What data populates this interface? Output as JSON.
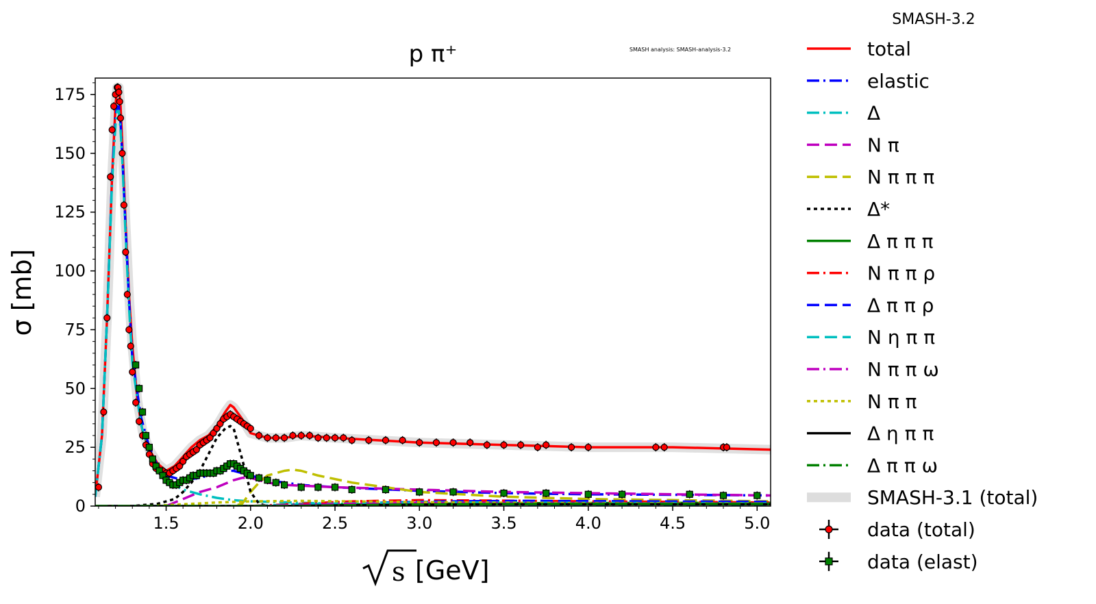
{
  "chart_data": {
    "type": "line",
    "title": "p π⁺",
    "watermark": "SMASH analysis: SMASH-analysis-3.2",
    "version_label": "SMASH-3.2",
    "xlabel_radicand": "s",
    "xlabel_unit": "[GeV]",
    "ylabel": "σ [mb]",
    "xlim": [
      1.08,
      5.08
    ],
    "ylim": [
      0,
      182
    ],
    "xticks": [
      1.5,
      2.0,
      2.5,
      3.0,
      3.5,
      4.0,
      4.5,
      5.0
    ],
    "xtick_labels": [
      "1.5",
      "2.0",
      "2.5",
      "3.0",
      "3.5",
      "4.0",
      "4.5",
      "5.0"
    ],
    "yticks": [
      0,
      25,
      50,
      75,
      100,
      125,
      150,
      175
    ],
    "ytick_labels": [
      "0",
      "25",
      "50",
      "75",
      "100",
      "125",
      "150",
      "175"
    ],
    "legend_position": "outside-right",
    "series": [
      {
        "name": "total",
        "color": "#ff0000",
        "style": "solid",
        "x": [
          1.08,
          1.12,
          1.15,
          1.18,
          1.2,
          1.21,
          1.22,
          1.23,
          1.24,
          1.26,
          1.28,
          1.3,
          1.33,
          1.36,
          1.4,
          1.45,
          1.5,
          1.55,
          1.6,
          1.65,
          1.7,
          1.75,
          1.8,
          1.85,
          1.88,
          1.9,
          1.95,
          2.0,
          2.1,
          2.2,
          2.3,
          2.5,
          3.0,
          3.5,
          4.0,
          4.5,
          5.08
        ],
        "y": [
          4,
          30,
          80,
          140,
          170,
          178,
          178,
          170,
          155,
          120,
          90,
          68,
          45,
          32,
          24,
          18,
          15,
          17,
          21,
          25,
          28,
          30,
          34,
          40,
          43,
          42,
          37,
          31,
          29,
          29,
          30,
          29,
          27,
          26,
          25,
          25,
          24
        ]
      },
      {
        "name": "elastic",
        "color": "#0000ff",
        "style": "dashdot",
        "x": [
          1.08,
          1.12,
          1.15,
          1.18,
          1.2,
          1.21,
          1.22,
          1.23,
          1.24,
          1.26,
          1.28,
          1.3,
          1.35,
          1.4,
          1.45,
          1.5,
          1.6,
          1.7,
          1.8,
          1.85,
          1.9,
          1.95,
          2.0,
          2.1,
          2.2,
          2.3,
          2.5,
          3.0,
          3.5,
          4.0,
          4.5,
          5.08
        ],
        "y": [
          4,
          30,
          80,
          140,
          165,
          170,
          170,
          163,
          150,
          118,
          88,
          63,
          38,
          25,
          17,
          13,
          11,
          12,
          14,
          15,
          15,
          14,
          13,
          11,
          10,
          9,
          8,
          6.5,
          5.5,
          5,
          4.8,
          4.5
        ]
      },
      {
        "name": "Δ",
        "color": "#00bfbf",
        "style": "dashdot",
        "x": [
          1.08,
          1.12,
          1.15,
          1.18,
          1.2,
          1.21,
          1.22,
          1.23,
          1.24,
          1.26,
          1.28,
          1.3,
          1.35,
          1.4,
          1.5,
          1.6,
          1.7,
          1.8,
          1.9,
          2.0,
          2.5,
          3.0,
          4.0,
          5.08
        ],
        "y": [
          4,
          30,
          80,
          138,
          162,
          168,
          168,
          160,
          148,
          115,
          85,
          61,
          35,
          22,
          11,
          7,
          5,
          3.5,
          2.5,
          2,
          1,
          0.6,
          0.3,
          0.2
        ]
      },
      {
        "name": "N π",
        "color": "#bf00bf",
        "style": "dashed",
        "x": [
          1.08,
          1.5,
          1.6,
          1.7,
          1.8,
          1.9,
          1.95,
          2.0,
          2.1,
          2.2,
          2.5,
          3.0,
          3.5,
          4.0,
          4.5,
          5.08
        ],
        "y": [
          0,
          0,
          3,
          6,
          8,
          11,
          12,
          12,
          10,
          9,
          8,
          7,
          6,
          5.5,
          5,
          4.5
        ]
      },
      {
        "name": "N π π π",
        "color": "#bfbf00",
        "style": "dashed",
        "x": [
          1.08,
          1.9,
          1.95,
          2.0,
          2.05,
          2.1,
          2.2,
          2.25,
          2.3,
          2.4,
          2.6,
          2.8,
          3.0,
          3.5,
          4.0,
          5.08
        ],
        "y": [
          0,
          0,
          1,
          6,
          10,
          13,
          15,
          15.5,
          15,
          13,
          10,
          8,
          6,
          4,
          3,
          2
        ]
      },
      {
        "name": "Δ*",
        "color": "#000000",
        "style": "dotted",
        "x": [
          1.08,
          1.3,
          1.45,
          1.55,
          1.6,
          1.65,
          1.7,
          1.75,
          1.8,
          1.85,
          1.88,
          1.9,
          1.95,
          2.0,
          2.05,
          2.1
        ],
        "y": [
          0,
          0,
          1,
          3,
          6,
          10,
          15,
          22,
          29,
          33,
          34,
          33,
          20,
          6,
          1,
          0
        ]
      },
      {
        "name": "Δ π π π",
        "color": "#008000",
        "style": "solid",
        "x": [
          1.08,
          2.2,
          2.5,
          3.0,
          3.5,
          4.0,
          5.08
        ],
        "y": [
          0,
          0,
          0.5,
          1,
          1.2,
          1.3,
          1.4
        ]
      },
      {
        "name": "N π π ρ",
        "color": "#ff0000",
        "style": "dashdot",
        "x": [
          1.08,
          2.0,
          2.3,
          2.6,
          3.0,
          3.5,
          4.0,
          5.08
        ],
        "y": [
          0,
          0,
          1,
          2,
          2.5,
          2.3,
          2,
          1.5
        ]
      },
      {
        "name": "Δ π π ρ",
        "color": "#0000ff",
        "style": "dashed",
        "x": [
          1.08,
          2.1,
          2.4,
          2.8,
          3.2,
          3.6,
          4.0,
          5.08
        ],
        "y": [
          0,
          0,
          0.5,
          1.5,
          2,
          2.2,
          2.1,
          1.8
        ]
      },
      {
        "name": "N η π π",
        "color": "#00bfbf",
        "style": "dashed",
        "x": [
          1.08,
          2.0,
          2.3,
          2.6,
          3.0,
          3.5,
          4.0,
          5.08
        ],
        "y": [
          0,
          0,
          0.8,
          1.2,
          1.5,
          1.5,
          1.4,
          1.2
        ]
      },
      {
        "name": "N π π ω",
        "color": "#bf00bf",
        "style": "dashdot",
        "x": [
          1.08,
          2.0,
          2.3,
          2.6,
          3.0,
          3.5,
          4.0,
          5.08
        ],
        "y": [
          0,
          0,
          0.5,
          1,
          1.3,
          1.4,
          1.3,
          1.1
        ]
      },
      {
        "name": "N π π",
        "color": "#bfbf00",
        "style": "dotted",
        "x": [
          1.08,
          1.4,
          1.6,
          1.8,
          2.0,
          2.3,
          2.6,
          3.0,
          3.5,
          4.0,
          5.08
        ],
        "y": [
          0,
          0,
          0.8,
          1.5,
          2,
          2.2,
          2,
          1.7,
          1.4,
          1.2,
          1
        ]
      },
      {
        "name": "Δ η π π",
        "color": "#000000",
        "style": "solid",
        "x": [
          1.08,
          2.2,
          2.5,
          3.0,
          3.5,
          4.0,
          5.08
        ],
        "y": [
          0,
          0,
          0.3,
          0.6,
          0.8,
          0.8,
          0.8
        ]
      },
      {
        "name": "Δ π π ω",
        "color": "#008000",
        "style": "dashdot",
        "x": [
          1.08,
          2.3,
          2.6,
          3.0,
          3.5,
          4.0,
          5.08
        ],
        "y": [
          0,
          0,
          0.4,
          0.7,
          0.9,
          1,
          1
        ]
      },
      {
        "name": "SMASH-3.1 (total)",
        "color": "#dddddd",
        "style": "band",
        "x": [
          1.08,
          1.12,
          1.15,
          1.18,
          1.2,
          1.21,
          1.22,
          1.23,
          1.24,
          1.26,
          1.28,
          1.3,
          1.33,
          1.36,
          1.4,
          1.45,
          1.5,
          1.55,
          1.6,
          1.65,
          1.7,
          1.75,
          1.8,
          1.85,
          1.88,
          1.9,
          1.95,
          2.0,
          2.1,
          2.2,
          2.3,
          2.5,
          3.0,
          3.5,
          4.0,
          4.5,
          5.08
        ],
        "y": [
          4,
          30,
          80,
          140,
          170,
          178,
          178,
          170,
          155,
          120,
          90,
          68,
          45,
          32,
          24,
          18,
          15,
          17,
          21,
          25,
          28,
          30,
          34,
          40,
          43,
          42,
          37,
          31,
          29,
          29,
          30,
          29,
          27,
          26,
          25,
          25,
          24
        ]
      }
    ],
    "data_total": {
      "name": "data (total)",
      "color": "#ff0000",
      "x": [
        1.1,
        1.13,
        1.15,
        1.17,
        1.18,
        1.19,
        1.2,
        1.21,
        1.215,
        1.22,
        1.225,
        1.23,
        1.24,
        1.25,
        1.26,
        1.27,
        1.28,
        1.29,
        1.3,
        1.32,
        1.34,
        1.36,
        1.38,
        1.4,
        1.42,
        1.44,
        1.46,
        1.48,
        1.5,
        1.52,
        1.54,
        1.56,
        1.58,
        1.6,
        1.62,
        1.64,
        1.66,
        1.68,
        1.7,
        1.72,
        1.74,
        1.76,
        1.78,
        1.8,
        1.82,
        1.84,
        1.86,
        1.88,
        1.9,
        1.92,
        1.94,
        1.96,
        1.98,
        2.0,
        2.05,
        2.1,
        2.15,
        2.2,
        2.25,
        2.3,
        2.35,
        2.4,
        2.45,
        2.5,
        2.55,
        2.6,
        2.7,
        2.8,
        2.9,
        3.0,
        3.1,
        3.2,
        3.3,
        3.4,
        3.5,
        3.6,
        3.7,
        3.75,
        3.9,
        4.0,
        4.4,
        4.45,
        4.8,
        4.82
      ],
      "y": [
        8,
        40,
        80,
        140,
        160,
        170,
        175,
        178,
        178,
        176,
        172,
        165,
        150,
        128,
        108,
        90,
        75,
        68,
        57,
        44,
        36,
        30,
        26,
        22,
        18,
        16,
        15,
        15,
        14,
        14,
        15,
        16,
        17,
        19,
        21,
        22,
        23,
        24,
        26,
        27,
        28,
        29,
        31,
        33,
        35,
        37,
        38,
        39,
        38,
        37,
        36,
        35,
        34,
        33,
        30,
        29,
        29,
        29,
        30,
        30,
        30,
        29,
        29,
        29,
        29,
        28,
        28,
        28,
        28,
        27,
        27,
        27,
        27,
        26,
        26,
        26,
        25,
        26,
        25,
        25,
        25,
        25,
        25,
        25
      ]
    },
    "data_elast": {
      "name": "data (elast)",
      "color": "#008000",
      "x": [
        1.32,
        1.34,
        1.36,
        1.38,
        1.4,
        1.42,
        1.44,
        1.46,
        1.48,
        1.5,
        1.52,
        1.54,
        1.56,
        1.58,
        1.6,
        1.62,
        1.64,
        1.66,
        1.68,
        1.7,
        1.72,
        1.74,
        1.76,
        1.78,
        1.8,
        1.82,
        1.84,
        1.86,
        1.88,
        1.9,
        1.92,
        1.94,
        1.96,
        1.98,
        2.0,
        2.05,
        2.1,
        2.15,
        2.2,
        2.3,
        2.4,
        2.5,
        2.6,
        2.8,
        3.0,
        3.2,
        3.5,
        3.75,
        4.0,
        4.2,
        4.6,
        4.8,
        5.0
      ],
      "y": [
        60,
        50,
        40,
        30,
        25,
        20,
        17,
        15,
        13,
        11,
        10,
        9,
        9,
        10,
        11,
        11,
        12,
        13,
        13,
        14,
        14,
        14,
        14,
        14,
        15,
        15,
        16,
        17,
        18,
        18,
        17,
        16,
        15,
        14,
        13,
        12,
        11,
        10,
        9,
        8,
        8,
        8,
        7,
        7,
        6,
        6,
        5.5,
        5.5,
        5,
        5,
        5,
        4.5,
        4.5
      ]
    }
  }
}
